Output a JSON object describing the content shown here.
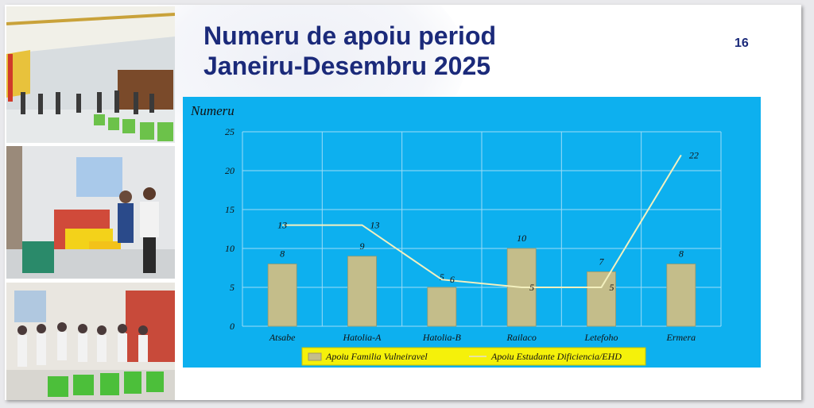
{
  "slide": {
    "title_line1": "Numeru de apoiu period",
    "title_line2": "Janeiru-Desembru 2025",
    "number": "16"
  },
  "photos": [
    {
      "icon": "community-hall-photo"
    },
    {
      "icon": "aid-distribution-photo"
    },
    {
      "icon": "group-recipients-photo"
    }
  ],
  "colors": {
    "title": "#1b2a7a",
    "chart_bg": "#0db0ef",
    "bar": "#c4bd8a",
    "line": "#f3f0bf",
    "legend_bg": "#f5f10a"
  },
  "chart_data": {
    "type": "bar",
    "title": "",
    "ylabel": "Numeru",
    "xlabel": "",
    "categories": [
      "Atsabe",
      "Hatolia-A",
      "Hatolia-B",
      "Railaco",
      "Letefoho",
      "Ermera"
    ],
    "series": [
      {
        "name": "Apoiu Familia Vulneiravel",
        "type": "bar",
        "values": [
          8,
          9,
          5,
          10,
          7,
          8
        ]
      },
      {
        "name": "Apoiu Estudante Dificiencia/EHD",
        "type": "line",
        "values": [
          13,
          13,
          6,
          5,
          5,
          22
        ]
      }
    ],
    "ylim": [
      0,
      25
    ],
    "yticks": [
      "0",
      "5",
      "10",
      "15",
      "20",
      "25"
    ],
    "grid": true,
    "legend": "bottom"
  }
}
